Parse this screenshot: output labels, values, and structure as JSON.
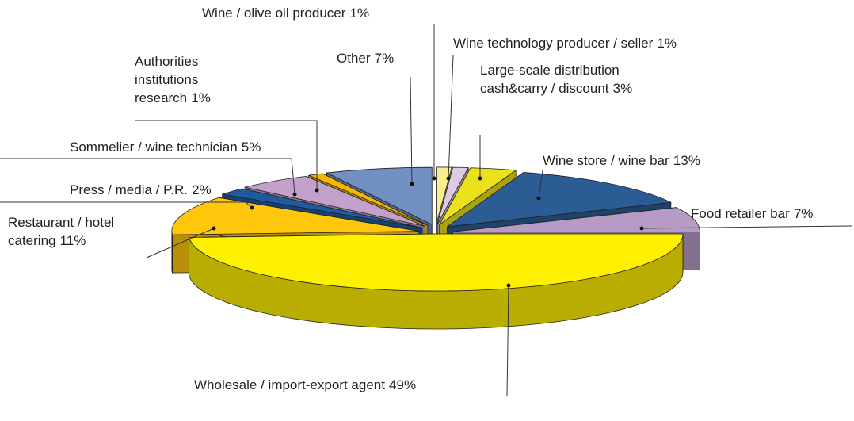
{
  "chart_data": {
    "type": "pie",
    "categories": [
      "Wine / olive oil producer",
      "Wine technology producer / seller",
      "Large-scale distribution cash&carry / discount",
      "Wine store / wine bar",
      "Food retailer bar",
      "Wholesale / import-export agent",
      "Restaurant / hotel catering",
      "Press / media / P.R.",
      "Sommelier / wine technician",
      "Authorities institutions research",
      "Other"
    ],
    "values": [
      1,
      1,
      3,
      13,
      7,
      49,
      11,
      2,
      5,
      1,
      7
    ],
    "value_labels": [
      "1%",
      "1%",
      "3%",
      "13%",
      "7%",
      "49%",
      "11%",
      "2%",
      "5%",
      "1%",
      "7%"
    ],
    "colors": [
      "#f6ef8c",
      "#dccbe2",
      "#ebe21c",
      "#2b5c94",
      "#b69bc4",
      "#fff000",
      "#ffc70c",
      "#1f5aa0",
      "#c2a2ca",
      "#f5b800",
      "#7290c2"
    ]
  }
}
